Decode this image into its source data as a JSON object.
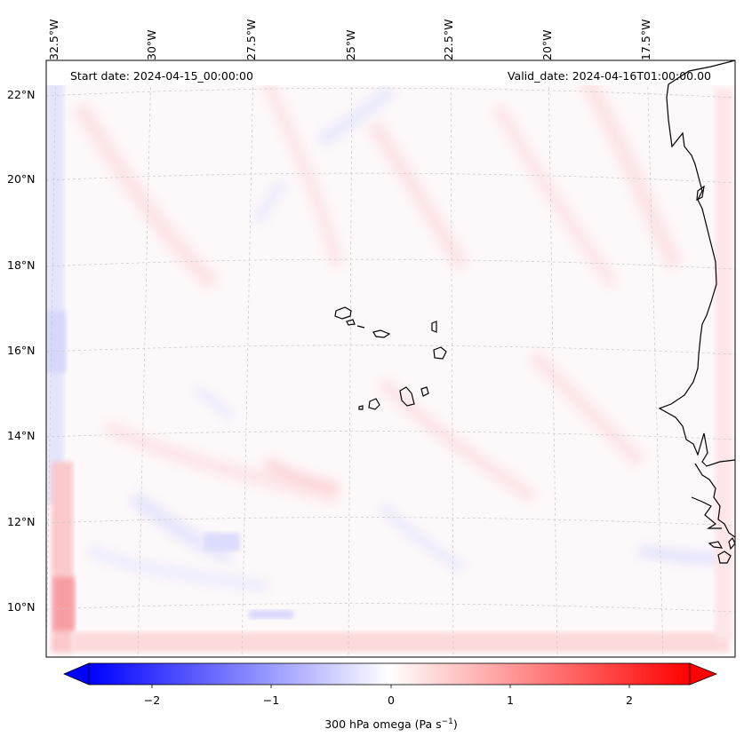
{
  "map": {
    "start_label": "Start date: 2024-04-15_00:00:00",
    "valid_label": "Valid_date: 2024-04-16T01:00:00.00",
    "longitude_labels": [
      "32.5°W",
      "30°W",
      "27.5°W",
      "25°W",
      "22.5°W",
      "20°W",
      "17.5°W"
    ],
    "latitude_labels": [
      "22°N",
      "20°N",
      "18°N",
      "16°N",
      "14°N",
      "12°N",
      "10°N"
    ],
    "field": "300 hPa omega",
    "colormap": "bwr",
    "coastline_color": "#000000",
    "gridline_color": "#bbbbbb"
  },
  "colorbar": {
    "ticks": [
      "−2",
      "−1",
      "0",
      "1",
      "2"
    ],
    "tick_values": [
      -2,
      -1,
      0,
      1,
      2
    ],
    "range": [
      -2.75,
      2.75
    ],
    "extend": "both",
    "label_main": "300 hPa omega (Pa s",
    "label_exp": "−1",
    "label_end": ")"
  }
}
